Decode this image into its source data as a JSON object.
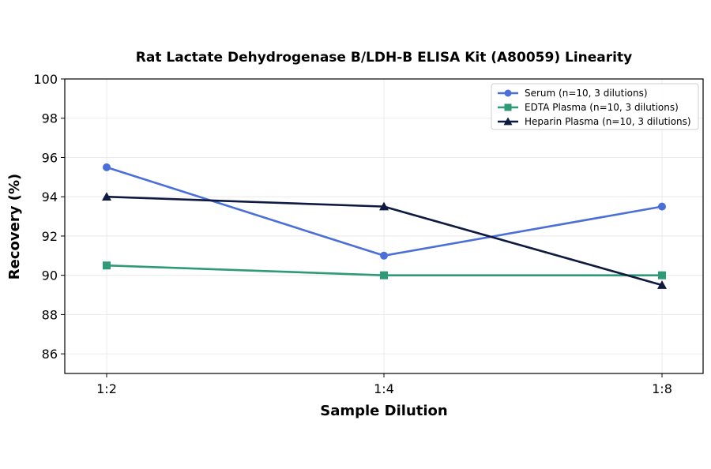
{
  "chart_data": {
    "type": "line",
    "title": "Rat Lactate Dehydrogenase B/LDH-B ELISA Kit (A80059) Linearity",
    "xlabel": "Sample Dilution",
    "ylabel": "Recovery (%)",
    "categories": [
      "1:2",
      "1:4",
      "1:8"
    ],
    "ylim": [
      85,
      100
    ],
    "yticks": [
      86,
      88,
      90,
      92,
      94,
      96,
      98,
      100
    ],
    "grid": true,
    "legend_position": "top-right",
    "series": [
      {
        "name": "Serum (n=10, 3 dilutions)",
        "values": [
          95.5,
          91.0,
          93.5
        ],
        "color": "#4a6fd8",
        "marker": "circle"
      },
      {
        "name": "EDTA Plasma (n=10, 3 dilutions)",
        "values": [
          90.5,
          90.0,
          90.0
        ],
        "color": "#2e9b76",
        "marker": "square"
      },
      {
        "name": "Heparin Plasma (n=10, 3 dilutions)",
        "values": [
          94.0,
          93.5,
          89.5
        ],
        "color": "#0f1a40",
        "marker": "triangle"
      }
    ]
  }
}
